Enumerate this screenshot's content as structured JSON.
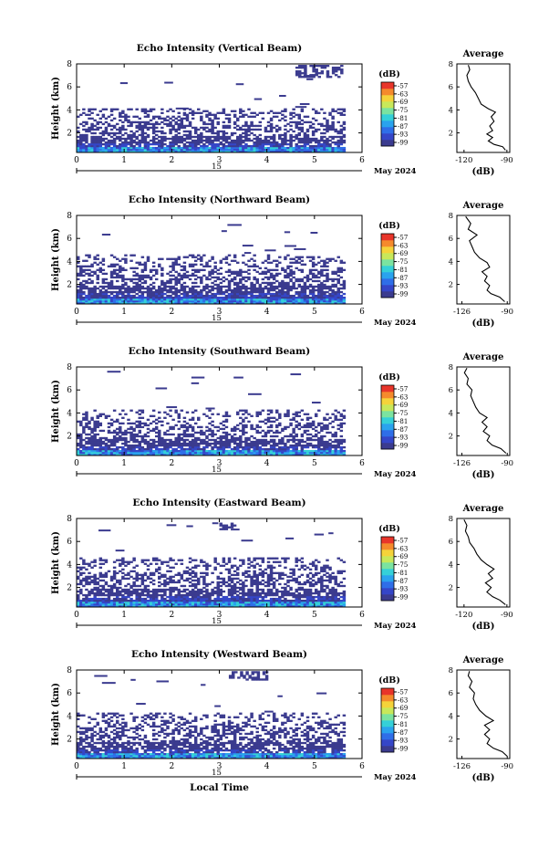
{
  "chart_data": {
    "type": "heatmap",
    "panels": [
      {
        "title": "Echo Intensity (Vertical Beam)",
        "ylabel": "Height (km)",
        "xlim": [
          0,
          6
        ],
        "ylim": [
          0.3,
          8
        ],
        "xticks": [
          "0",
          "1",
          "2",
          "3",
          "4",
          "5",
          "6"
        ],
        "yticks": [
          "2",
          "4",
          "6",
          "8"
        ],
        "date_day": "15",
        "date_label": "May 2024",
        "colorbar_label": "(dB)",
        "colorbar_ticks": [
          "-57",
          "-63",
          "-69",
          "-75",
          "-81",
          "-87",
          "-93",
          "-99"
        ],
        "echo_top_km": 4.0,
        "upper_layer_km": [
          6.8,
          7.8
        ],
        "upper_layer_hours": [
          4.6,
          5.6
        ],
        "avg_title": "Average",
        "avg_xlabel": "(dB)",
        "avg_xticks": [
          "-120",
          "-90"
        ],
        "avg_xlim": [
          -125,
          -88
        ],
        "avg_profile": [
          {
            "h": 0.5,
            "db": -91
          },
          {
            "h": 0.8,
            "db": -93
          },
          {
            "h": 1.0,
            "db": -99
          },
          {
            "h": 1.3,
            "db": -103
          },
          {
            "h": 1.6,
            "db": -100
          },
          {
            "h": 1.9,
            "db": -104
          },
          {
            "h": 2.2,
            "db": -100
          },
          {
            "h": 2.6,
            "db": -102
          },
          {
            "h": 3.0,
            "db": -99
          },
          {
            "h": 3.4,
            "db": -101
          },
          {
            "h": 3.8,
            "db": -98
          },
          {
            "h": 4.1,
            "db": -103
          },
          {
            "h": 4.5,
            "db": -108
          },
          {
            "h": 5.0,
            "db": -110
          },
          {
            "h": 5.5,
            "db": -112
          },
          {
            "h": 6.0,
            "db": -115
          },
          {
            "h": 6.5,
            "db": -117
          },
          {
            "h": 7.0,
            "db": -118
          },
          {
            "h": 7.5,
            "db": -116
          },
          {
            "h": 7.9,
            "db": -117
          }
        ]
      },
      {
        "title": "Echo Intensity (Northward Beam)",
        "ylabel": "Height (km)",
        "xlim": [
          0,
          6
        ],
        "ylim": [
          0.3,
          8
        ],
        "xticks": [
          "0",
          "1",
          "2",
          "3",
          "4",
          "5",
          "6"
        ],
        "yticks": [
          "2",
          "4",
          "6",
          "8"
        ],
        "date_day": "15",
        "date_label": "May 2024",
        "colorbar_label": "(dB)",
        "colorbar_ticks": [
          "-57",
          "-63",
          "-69",
          "-75",
          "-81",
          "-87",
          "-93",
          "-99"
        ],
        "echo_top_km": 4.5,
        "upper_layer_km": null,
        "upper_layer_hours": null,
        "avg_title": "Average",
        "avg_xlabel": "(dB)",
        "avg_xticks": [
          "-126",
          "-90"
        ],
        "avg_xlim": [
          -130,
          -88
        ],
        "avg_profile": [
          {
            "h": 0.5,
            "db": -92
          },
          {
            "h": 0.9,
            "db": -96
          },
          {
            "h": 1.2,
            "db": -103
          },
          {
            "h": 1.5,
            "db": -106
          },
          {
            "h": 1.9,
            "db": -104
          },
          {
            "h": 2.3,
            "db": -108
          },
          {
            "h": 2.7,
            "db": -106
          },
          {
            "h": 3.1,
            "db": -110
          },
          {
            "h": 3.5,
            "db": -104
          },
          {
            "h": 3.9,
            "db": -106
          },
          {
            "h": 4.3,
            "db": -112
          },
          {
            "h": 4.8,
            "db": -116
          },
          {
            "h": 5.3,
            "db": -118
          },
          {
            "h": 5.8,
            "db": -120
          },
          {
            "h": 6.3,
            "db": -114
          },
          {
            "h": 6.8,
            "db": -121
          },
          {
            "h": 7.3,
            "db": -119
          },
          {
            "h": 7.9,
            "db": -123
          }
        ]
      },
      {
        "title": "Echo Intensity (Southward Beam)",
        "ylabel": "Height (km)",
        "xlim": [
          0,
          6
        ],
        "ylim": [
          0.3,
          8
        ],
        "xticks": [
          "0",
          "1",
          "2",
          "3",
          "4",
          "5",
          "6"
        ],
        "yticks": [
          "2",
          "4",
          "6",
          "8"
        ],
        "date_day": "15",
        "date_label": "May 2024",
        "colorbar_label": "(dB)",
        "colorbar_ticks": [
          "-57",
          "-63",
          "-69",
          "-75",
          "-81",
          "-87",
          "-93",
          "-99"
        ],
        "echo_top_km": 4.3,
        "upper_layer_km": null,
        "upper_layer_hours": null,
        "avg_title": "Average",
        "avg_xlabel": "(dB)",
        "avg_xticks": [
          "-126",
          "-90"
        ],
        "avg_xlim": [
          -130,
          -88
        ],
        "avg_profile": [
          {
            "h": 0.5,
            "db": -91
          },
          {
            "h": 0.9,
            "db": -95
          },
          {
            "h": 1.2,
            "db": -102
          },
          {
            "h": 1.6,
            "db": -106
          },
          {
            "h": 2.0,
            "db": -104
          },
          {
            "h": 2.4,
            "db": -109
          },
          {
            "h": 2.8,
            "db": -106
          },
          {
            "h": 3.2,
            "db": -110
          },
          {
            "h": 3.6,
            "db": -106
          },
          {
            "h": 4.0,
            "db": -112
          },
          {
            "h": 4.5,
            "db": -115
          },
          {
            "h": 5.0,
            "db": -117
          },
          {
            "h": 5.5,
            "db": -119
          },
          {
            "h": 6.0,
            "db": -118
          },
          {
            "h": 6.5,
            "db": -122
          },
          {
            "h": 7.0,
            "db": -121
          },
          {
            "h": 7.5,
            "db": -124
          },
          {
            "h": 7.9,
            "db": -122
          }
        ]
      },
      {
        "title": "Echo Intensity (Eastward Beam)",
        "ylabel": "Height (km)",
        "xlim": [
          0,
          6
        ],
        "ylim": [
          0.3,
          8
        ],
        "xticks": [
          "0",
          "1",
          "2",
          "3",
          "4",
          "5",
          "6"
        ],
        "yticks": [
          "2",
          "4",
          "6",
          "8"
        ],
        "date_day": "15",
        "date_label": "May 2024",
        "colorbar_label": "(dB)",
        "colorbar_ticks": [
          "-57",
          "-63",
          "-69",
          "-75",
          "-81",
          "-87",
          "-93",
          "-99"
        ],
        "echo_top_km": 4.6,
        "upper_layer_km": [
          7.0,
          7.6
        ],
        "upper_layer_hours": [
          3.0,
          3.3
        ],
        "avg_title": "Average",
        "avg_xlabel": "(dB)",
        "avg_xticks": [
          "-120",
          "-90"
        ],
        "avg_xlim": [
          -125,
          -88
        ],
        "avg_profile": [
          {
            "h": 0.5,
            "db": -91
          },
          {
            "h": 0.9,
            "db": -95
          },
          {
            "h": 1.2,
            "db": -100
          },
          {
            "h": 1.6,
            "db": -104
          },
          {
            "h": 2.0,
            "db": -101
          },
          {
            "h": 2.4,
            "db": -105
          },
          {
            "h": 2.8,
            "db": -100
          },
          {
            "h": 3.2,
            "db": -103
          },
          {
            "h": 3.6,
            "db": -99
          },
          {
            "h": 4.0,
            "db": -104
          },
          {
            "h": 4.4,
            "db": -108
          },
          {
            "h": 4.9,
            "db": -111
          },
          {
            "h": 5.4,
            "db": -113
          },
          {
            "h": 5.9,
            "db": -116
          },
          {
            "h": 6.4,
            "db": -117
          },
          {
            "h": 6.9,
            "db": -119
          },
          {
            "h": 7.4,
            "db": -118
          },
          {
            "h": 7.9,
            "db": -120
          }
        ]
      },
      {
        "title": "Echo Intensity (Westward Beam)",
        "ylabel": "Height (km)",
        "xlim": [
          0,
          6
        ],
        "ylim": [
          0.3,
          8
        ],
        "xticks": [
          "0",
          "1",
          "2",
          "3",
          "4",
          "5",
          "6"
        ],
        "yticks": [
          "2",
          "4",
          "6",
          "8"
        ],
        "date_day": "15",
        "date_label": "May 2024",
        "colorbar_label": "(dB)",
        "colorbar_ticks": [
          "-57",
          "-63",
          "-69",
          "-75",
          "-81",
          "-87",
          "-93",
          "-99"
        ],
        "echo_top_km": 4.3,
        "upper_layer_km": [
          7.1,
          7.9
        ],
        "upper_layer_hours": [
          3.2,
          4.0
        ],
        "avg_title": "Average",
        "avg_xlabel": "(dB)",
        "avg_xticks": [
          "-126",
          "-90"
        ],
        "avg_xlim": [
          -130,
          -88
        ],
        "avg_profile": [
          {
            "h": 0.5,
            "db": -90
          },
          {
            "h": 0.9,
            "db": -94
          },
          {
            "h": 1.2,
            "db": -101
          },
          {
            "h": 1.6,
            "db": -106
          },
          {
            "h": 2.0,
            "db": -104
          },
          {
            "h": 2.4,
            "db": -108
          },
          {
            "h": 2.8,
            "db": -104
          },
          {
            "h": 3.2,
            "db": -108
          },
          {
            "h": 3.6,
            "db": -101
          },
          {
            "h": 4.0,
            "db": -107
          },
          {
            "h": 4.5,
            "db": -112
          },
          {
            "h": 5.0,
            "db": -115
          },
          {
            "h": 5.5,
            "db": -117
          },
          {
            "h": 6.0,
            "db": -116
          },
          {
            "h": 6.5,
            "db": -120
          },
          {
            "h": 7.0,
            "db": -118
          },
          {
            "h": 7.5,
            "db": -121
          },
          {
            "h": 7.9,
            "db": -120
          }
        ]
      }
    ],
    "xlabel_bottom": "Local Time",
    "colormap": [
      "#3b3b8f",
      "#3546c8",
      "#2f6ee8",
      "#2aa3ee",
      "#35d0d8",
      "#7be3a0",
      "#c8e85a",
      "#f5d33a",
      "#f58a2c",
      "#e8352a"
    ],
    "empty_color": "#ffffff"
  }
}
